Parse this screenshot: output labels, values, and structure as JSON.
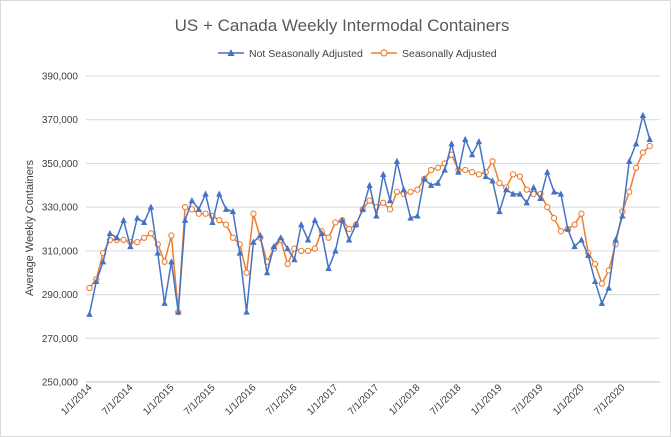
{
  "chart_data": {
    "type": "line",
    "title": "US + Canada Weekly Intermodal Containers",
    "xlabel": "",
    "ylabel": "Average Weekly Containers",
    "ylim": [
      250000,
      390000
    ],
    "yticks": [
      250000,
      270000,
      290000,
      310000,
      330000,
      350000,
      370000,
      390000
    ],
    "ytick_labels": [
      "250,000",
      "270,000",
      "290,000",
      "310,000",
      "330,000",
      "350,000",
      "370,000",
      "390,000"
    ],
    "xtick_labels": [
      "1/1/2014",
      "7/1/2014",
      "1/1/2015",
      "7/1/2015",
      "1/1/2016",
      "7/1/2016",
      "1/1/2017",
      "7/1/2017",
      "1/1/2018",
      "7/1/2018",
      "1/1/2019",
      "7/1/2019",
      "1/1/2020",
      "7/1/2020"
    ],
    "x_periods": 84,
    "grid": true,
    "legend_position": "top",
    "series": [
      {
        "name": "Not Seasonally Adjusted",
        "color": "#4472c4",
        "marker": "triangle",
        "values": [
          281000,
          296000,
          305000,
          318000,
          316000,
          324000,
          312000,
          325000,
          323000,
          330000,
          309000,
          286000,
          305000,
          282000,
          324000,
          333000,
          329000,
          336000,
          323000,
          336000,
          329000,
          328000,
          309000,
          282000,
          314000,
          317000,
          300000,
          312000,
          316000,
          311000,
          306000,
          322000,
          315000,
          324000,
          318000,
          302000,
          310000,
          324000,
          315000,
          322000,
          329000,
          340000,
          326000,
          345000,
          333000,
          351000,
          338000,
          325000,
          326000,
          343000,
          340000,
          341000,
          347000,
          359000,
          346000,
          361000,
          354000,
          360000,
          344000,
          342000,
          328000,
          338000,
          336000,
          336000,
          332000,
          339000,
          334000,
          346000,
          337000,
          336000,
          320000,
          312000,
          315000,
          308000,
          296000,
          286000,
          293000,
          315000,
          326000,
          351000,
          359000,
          372000,
          361000
        ]
      },
      {
        "name": "Seasonally Adjusted",
        "color": "#ed7d31",
        "marker": "circle",
        "values": [
          293000,
          297000,
          309000,
          315000,
          315000,
          315000,
          314000,
          314000,
          316000,
          318000,
          313000,
          305000,
          317000,
          282000,
          330000,
          329000,
          327000,
          327000,
          326000,
          324000,
          322000,
          316000,
          313000,
          300000,
          327000,
          316000,
          305000,
          311000,
          315000,
          304000,
          311000,
          310000,
          310000,
          311000,
          319000,
          316000,
          323000,
          324000,
          320000,
          322000,
          329000,
          333000,
          330000,
          332000,
          329000,
          337000,
          336000,
          337000,
          338000,
          343000,
          347000,
          348000,
          350000,
          354000,
          347000,
          347000,
          346000,
          345000,
          346000,
          351000,
          341000,
          339000,
          345000,
          344000,
          338000,
          336000,
          336000,
          330000,
          325000,
          319000,
          320000,
          322000,
          327000,
          309000,
          304000,
          295000,
          301000,
          313000,
          328000,
          337000,
          348000,
          355000,
          358000
        ]
      }
    ]
  }
}
